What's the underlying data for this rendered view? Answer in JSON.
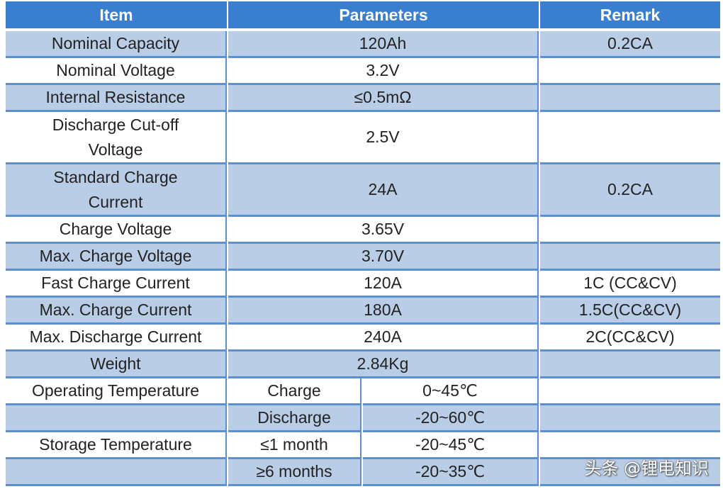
{
  "header": {
    "item": "Item",
    "parameters": "Parameters",
    "remark": "Remark"
  },
  "rows": [
    {
      "item": "Nominal Capacity",
      "param": "120Ah",
      "remark": "0.2CA"
    },
    {
      "item": "Nominal Voltage",
      "param": "3.2V",
      "remark": ""
    },
    {
      "item": "Internal Resistance",
      "param": "≤0.5mΩ",
      "remark": ""
    },
    {
      "item_l1": "Discharge Cut-off",
      "item_l2": "Voltage",
      "param": "2.5V",
      "remark": ""
    },
    {
      "item_l1": "Standard Charge",
      "item_l2": "Current",
      "param": "24A",
      "remark": "0.2CA"
    },
    {
      "item": "Charge Voltage",
      "param": "3.65V",
      "remark": ""
    },
    {
      "item": "Max. Charge Voltage",
      "param": "3.70V",
      "remark": ""
    },
    {
      "item": "Fast Charge Current",
      "param": "120A",
      "remark": "1C (CC&CV)"
    },
    {
      "item": "Max. Charge Current",
      "param": "180A",
      "remark": "1.5C(CC&CV)"
    },
    {
      "item": "Max. Discharge Current",
      "param": "240A",
      "remark": "2C(CC&CV)"
    },
    {
      "item": "Weight",
      "param": "2.84Kg",
      "remark": ""
    },
    {
      "item": "Operating Temperature",
      "sub": "Charge",
      "value": "0~45℃",
      "remark": ""
    },
    {
      "item": "",
      "sub": "Discharge",
      "value": "-20~60℃",
      "remark": ""
    },
    {
      "item": "Storage Temperature",
      "sub": "≤1 month",
      "value": "-20~45℃",
      "remark": ""
    },
    {
      "item": "",
      "sub": "≥6 months",
      "value": "-20~35℃",
      "remark": ""
    }
  ],
  "watermark": "头条 @锂电知识"
}
